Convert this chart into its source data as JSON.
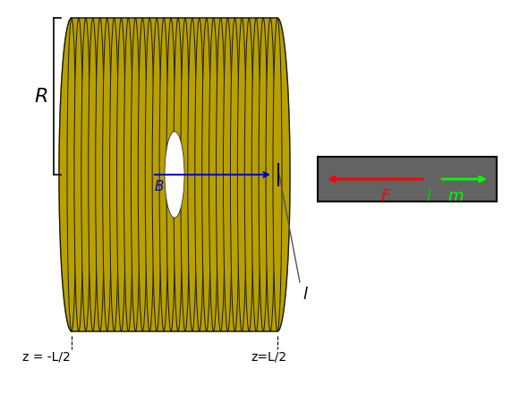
{
  "bg_color": "#ffffff",
  "solenoid_color": "#b8a000",
  "solenoid_edge_color": "#1a1a1a",
  "n_loops": 30,
  "loop_color": "#b8a000",
  "loop_edge": "#1a1a1a",
  "B_arrow_color": "#0000cc",
  "B_label": "B",
  "R_label": "R",
  "l_label": "l",
  "z_left_label": "z = -L/2",
  "z_right_label": "z=L/2",
  "box_color": "#636363",
  "F_label": "F",
  "F_color": "#ff0000",
  "m_label": "m",
  "m_color": "#00ff00",
  "I_label": "I",
  "I_color": "#00cc00"
}
